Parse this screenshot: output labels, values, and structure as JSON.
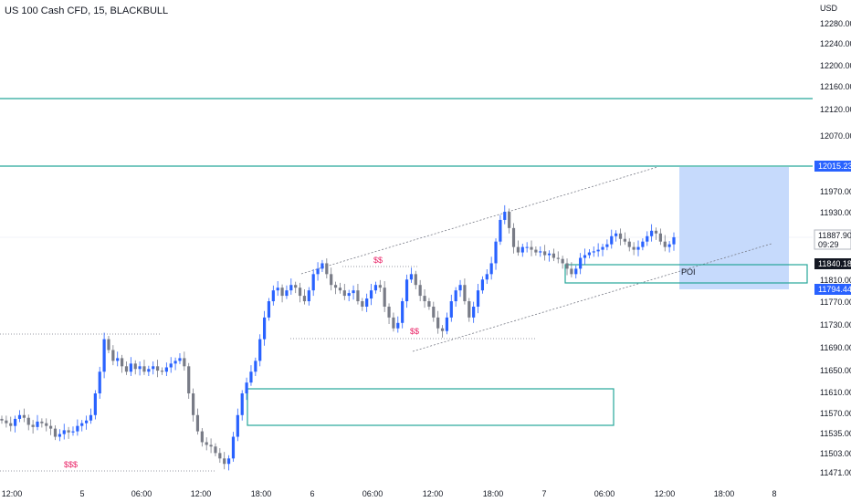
{
  "header": {
    "symbol_title": "US 100 Cash CFD, 15, BLACKBULL",
    "currency": "USD"
  },
  "colors": {
    "up": "#2962ff",
    "down": "#787b86",
    "zone_line": "#26a69a",
    "target_fill": "#c6dafc",
    "annotation_red": "#e91e63",
    "badge_blue": "#2962ff",
    "badge_dark": "#131722",
    "badge_grey": "#b2b5be"
  },
  "chart_data": {
    "type": "candlestick",
    "y_ticks": [
      "12280.00",
      "12240.00",
      "12200.00",
      "12160.00",
      "12120.00",
      "12070.00",
      "11970.00",
      "11930.00",
      "11890.00",
      "11810.00",
      "11770.00",
      "11730.00",
      "11690.00",
      "11650.00",
      "11610.00",
      "11570.00",
      "11535.00",
      "11503.00",
      "11471.00"
    ],
    "x_ticks": [
      "12:00",
      "5",
      "06:00",
      "12:00",
      "18:00",
      "6",
      "06:00",
      "12:00",
      "18:00",
      "7",
      "06:00",
      "12:00",
      "18:00",
      "8"
    ],
    "price_badges": {
      "resistance": "12015.23",
      "last": "11887.90",
      "countdown": "09:29",
      "middle": "11840.18",
      "lower": "11794.44"
    },
    "horizontal_levels": [
      12140,
      12015.23
    ],
    "annotations": {
      "sss": "$$$",
      "ss1": "$$",
      "ss2": "$$",
      "poi": "POI"
    },
    "close_series": [
      11550,
      11545,
      11540,
      11553,
      11560,
      11555,
      11542,
      11538,
      11548,
      11545,
      11540,
      11535,
      11520,
      11525,
      11532,
      11528,
      11530,
      11540,
      11545,
      11550,
      11560,
      11600,
      11640,
      11700,
      11680,
      11660,
      11665,
      11650,
      11640,
      11655,
      11645,
      11650,
      11640,
      11645,
      11650,
      11642,
      11640,
      11648,
      11655,
      11660,
      11665,
      11650,
      11600,
      11560,
      11530,
      11510,
      11505,
      11502,
      11490,
      11480,
      11470,
      11480,
      11520,
      11560,
      11600,
      11620,
      11640,
      11660,
      11700,
      11740,
      11770,
      11790,
      11795,
      11780,
      11790,
      11800,
      11795,
      11780,
      11770,
      11790,
      11820,
      11830,
      11840,
      11820,
      11800,
      11795,
      11790,
      11780,
      11785,
      11790,
      11770,
      11760,
      11775,
      11790,
      11800,
      11795,
      11760,
      11740,
      11720,
      11730,
      11770,
      11810,
      11820,
      11800,
      11780,
      11770,
      11760,
      11740,
      11720,
      11715,
      11740,
      11770,
      11790,
      11800,
      11770,
      11740,
      11760,
      11790,
      11810,
      11820,
      11840,
      11880,
      11920,
      11935,
      11905,
      11870,
      11860,
      11870,
      11870,
      11865,
      11860,
      11862,
      11855,
      11858,
      11850,
      11848,
      11840,
      11830,
      11820,
      11830,
      11850,
      11855,
      11860,
      11862,
      11865,
      11870,
      11875,
      11890,
      11895,
      11885,
      11880,
      11870,
      11865,
      11870,
      11880,
      11890,
      11900,
      11895,
      11880,
      11870,
      11875,
      11888
    ],
    "zones": [
      {
        "label": "POI",
        "top": 11845,
        "bottom": 11808
      },
      {
        "label": "",
        "top": 11625,
        "bottom": 11565
      }
    ],
    "target_box": {
      "top": 12015.23,
      "bottom": 11794.44
    }
  }
}
